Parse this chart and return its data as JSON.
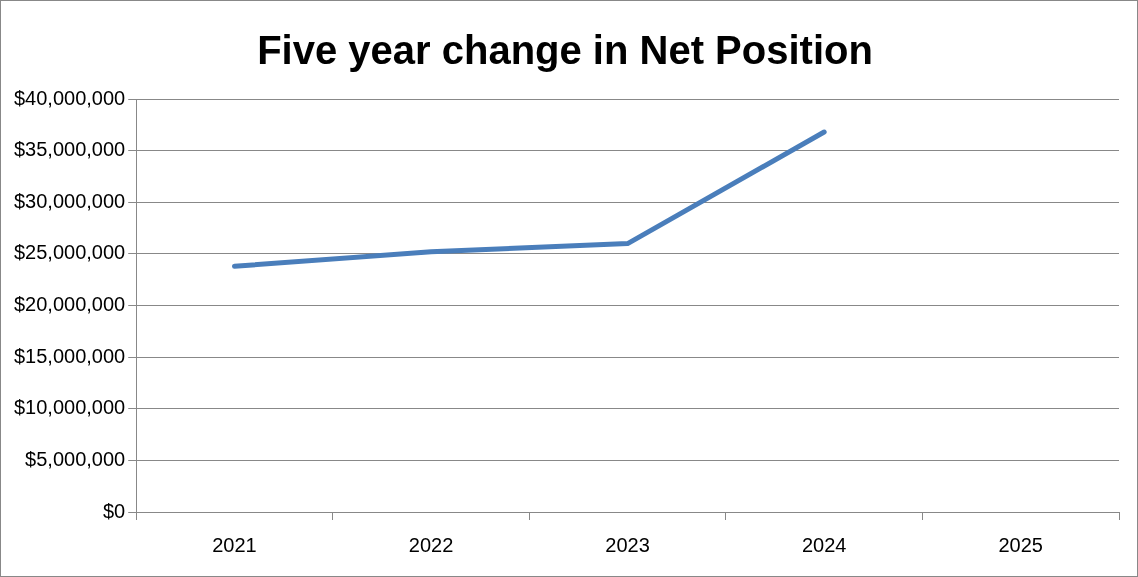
{
  "chart_data": {
    "type": "line",
    "title": "Five year change in Net Position",
    "categories": [
      "2021",
      "2022",
      "2023",
      "2024",
      "2025"
    ],
    "series": [
      {
        "color": "#4a7ebb",
        "values": [
          23800000,
          25200000,
          26000000,
          36800000,
          null
        ]
      }
    ],
    "ylim": [
      0,
      40000000
    ],
    "yticks": [
      {
        "value": 0,
        "label": "$0"
      },
      {
        "value": 5000000,
        "label": "$5,000,000"
      },
      {
        "value": 10000000,
        "label": "$10,000,000"
      },
      {
        "value": 15000000,
        "label": "$15,000,000"
      },
      {
        "value": 20000000,
        "label": "$20,000,000"
      },
      {
        "value": 25000000,
        "label": "$25,000,000"
      },
      {
        "value": 30000000,
        "label": "$30,000,000"
      },
      {
        "value": 35000000,
        "label": "$35,000,000"
      },
      {
        "value": 40000000,
        "label": "$40,000,000"
      }
    ],
    "grid": "y",
    "legend": false,
    "marker": "none",
    "line_style": "solid"
  }
}
